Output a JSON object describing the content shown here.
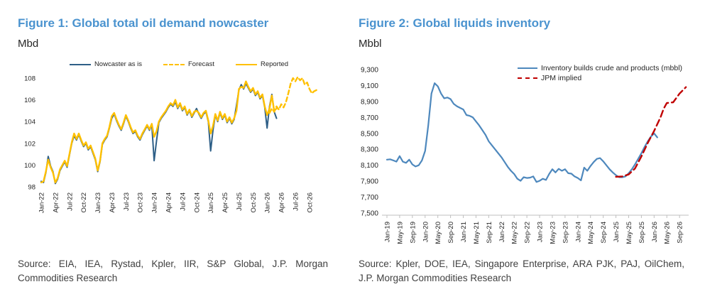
{
  "colors": {
    "figure_title": "#4a93cf",
    "text_dark": "#262626",
    "source_gray": "#404040",
    "axis_gray": "#bfbfbf",
    "nowcaster_blue": "#2e5f87",
    "reported_gold": "#ffc000",
    "inventory_blue": "#4e88bd",
    "jpm_red": "#c00000"
  },
  "figures": [
    {
      "title": "Figure 1: Global total oil demand nowcaster",
      "unit": "Mbd",
      "source": "Source: EIA, IEA, Rystad, Kpler, IIR, S&P Global, J.P. Morgan Commodities Research"
    },
    {
      "title": "Figure 2: Global liquids inventory",
      "unit": "Mbbl",
      "source": "Source: Kpler, DOE, IEA, Singapore Enterprise, ARA PJK, PAJ, OilChem, J.P. Morgan Commodities Research"
    }
  ],
  "chart_data": [
    {
      "type": "line",
      "title": "Figure 1: Global total oil demand nowcaster",
      "ylabel": "Mbd",
      "ylim": [
        98,
        108
      ],
      "grid": false,
      "legend_position": "top-center",
      "ytick_values": [
        98,
        100,
        102,
        104,
        106,
        108
      ],
      "ytick_labels": [
        "98",
        "100",
        "102",
        "104",
        "106",
        "108"
      ],
      "x_tick_step_months": 3,
      "x_tick_labels": [
        "Jan-22",
        "Apr-22",
        "Jul-22",
        "Oct-22",
        "Jan-23",
        "Apr-23",
        "Jul-23",
        "Oct-23",
        "Jan-24",
        "Apr-24",
        "Jul-24",
        "Oct-24",
        "Jan-25",
        "Apr-25",
        "Jul-25",
        "Oct-25",
        "Jan-26",
        "Apr-26",
        "Jul-26",
        "Oct-26"
      ],
      "legend": [
        {
          "label": "Nowcaster as is",
          "color": "#2e5f87",
          "dash": false
        },
        {
          "label": "Forecast",
          "color": "#ffc000",
          "dash": true
        },
        {
          "label": "Reported",
          "color": "#ffc000",
          "dash": false
        }
      ],
      "series": [
        {
          "name": "Nowcaster as is",
          "color": "#2e5f87",
          "dash": null,
          "width": 2,
          "start_m": 0,
          "step_m": 0.5,
          "values": [
            98.5,
            98.4,
            99.3,
            100.8,
            99.9,
            99.4,
            98.3,
            98.7,
            99.5,
            99.9,
            100.3,
            99.8,
            100.9,
            102.0,
            102.7,
            102.3,
            102.8,
            102.2,
            101.7,
            102.0,
            101.4,
            101.7,
            101.1,
            100.5,
            99.4,
            100.3,
            101.9,
            102.3,
            102.6,
            103.4,
            104.3,
            104.7,
            104.1,
            103.6,
            103.2,
            103.8,
            104.5,
            104.0,
            103.4,
            102.9,
            103.1,
            102.6,
            102.3,
            102.8,
            103.2,
            103.6,
            103.2,
            103.7,
            100.4,
            102.2,
            103.9,
            104.3,
            104.6,
            104.9,
            105.3,
            105.6,
            105.4,
            105.8,
            105.2,
            105.6,
            105.0,
            105.3,
            104.6,
            105.0,
            104.4,
            104.8,
            105.2,
            104.7,
            104.3,
            104.7,
            104.9,
            104.0,
            101.3,
            103.2,
            104.6,
            104.0,
            104.8,
            104.2,
            104.6,
            103.9,
            104.3,
            103.8,
            104.2,
            105.5,
            106.9,
            107.4,
            107.0,
            107.5,
            107.1,
            106.7,
            107.0,
            106.4,
            106.7,
            106.1,
            106.4,
            105.3,
            103.4,
            105.4,
            106.5,
            104.9,
            104.3
          ]
        },
        {
          "name": "Reported",
          "color": "#ffc000",
          "dash": null,
          "width": 2.4,
          "start_m": 0,
          "step_m": 0.5,
          "values": [
            98.4,
            98.5,
            99.4,
            100.5,
            99.8,
            99.3,
            98.4,
            98.8,
            99.6,
            100.0,
            100.4,
            99.9,
            101.0,
            102.1,
            102.9,
            102.4,
            102.9,
            102.3,
            101.8,
            102.1,
            101.5,
            101.8,
            101.2,
            100.6,
            99.5,
            100.4,
            102.0,
            102.4,
            102.7,
            103.5,
            104.5,
            104.8,
            104.2,
            103.7,
            103.3,
            103.9,
            104.6,
            104.1,
            103.5,
            103.0,
            103.2,
            102.7,
            102.4,
            102.9,
            103.3,
            103.7,
            103.3,
            103.8,
            102.6,
            103.1,
            104.0,
            104.4,
            104.7,
            105.0,
            105.4,
            105.7,
            105.5,
            106.0,
            105.3,
            105.7,
            105.1,
            105.4,
            104.7,
            105.1,
            104.5,
            104.9,
            105.0,
            104.8,
            104.4,
            104.8,
            105.0,
            104.1,
            102.9,
            103.6,
            104.7,
            104.1,
            104.9,
            104.3,
            104.7,
            104.0,
            104.4,
            103.9,
            104.3,
            105.0,
            107.0,
            107.2,
            107.1,
            107.7,
            107.2,
            106.8,
            107.1,
            106.5,
            106.8,
            106.2,
            106.5,
            105.4,
            104.6,
            105.2,
            106.4,
            105.0,
            105.2
          ]
        },
        {
          "name": "Forecast",
          "color": "#ffc000",
          "dash": "6 4",
          "width": 2.4,
          "start_m": 48.5,
          "step_m": 0.5,
          "values": [
            104.8,
            105.2,
            104.9,
            105.4,
            105.1,
            105.6,
            105.3,
            105.8,
            106.6,
            107.5,
            108.0,
            107.7,
            108.1,
            107.8,
            108.0,
            107.4,
            107.6,
            107.0,
            106.6,
            106.8,
            106.9
          ]
        }
      ]
    },
    {
      "type": "line",
      "title": "Figure 2: Global liquids inventory",
      "ylabel": "Mbbl",
      "ylim": [
        7500,
        9300
      ],
      "grid": false,
      "legend_position": "top-right",
      "ytick_values": [
        7500,
        7700,
        7900,
        8100,
        8300,
        8500,
        8700,
        8900,
        9100,
        9300
      ],
      "ytick_labels": [
        "7,500",
        "7,700",
        "7,900",
        "8,100",
        "8,300",
        "8,500",
        "8,700",
        "8,900",
        "9,100",
        "9,300"
      ],
      "x_tick_step_months": 4,
      "x_tick_labels": [
        "Jan-19",
        "May-19",
        "Sep-19",
        "Jan-20",
        "May-20",
        "Sep-20",
        "Jan-21",
        "May-21",
        "Sep-21",
        "Jan-22",
        "May-22",
        "Sep-22",
        "Jan-23",
        "May-23",
        "Sep-23",
        "Jan-24",
        "May-24",
        "Sep-24",
        "Jan-25",
        "May-25",
        "Sep-25",
        "Jan-26",
        "May-26",
        "Sep-26"
      ],
      "legend": [
        {
          "label": "Inventory builds crude and products (mbbl)",
          "color": "#4e88bd",
          "dash": false
        },
        {
          "label": "JPM implied",
          "color": "#c00000",
          "dash": true
        }
      ],
      "series": [
        {
          "name": "Inventory builds crude and products (mbbl)",
          "color": "#4e88bd",
          "dash": null,
          "width": 2.2,
          "start_m": 0,
          "step_m": 1,
          "values": [
            8170,
            8175,
            8160,
            8145,
            8215,
            8145,
            8130,
            8170,
            8110,
            8085,
            8100,
            8160,
            8280,
            8600,
            9000,
            9130,
            9090,
            9000,
            8940,
            8950,
            8930,
            8870,
            8840,
            8820,
            8800,
            8730,
            8720,
            8700,
            8650,
            8600,
            8540,
            8480,
            8400,
            8350,
            8300,
            8250,
            8200,
            8140,
            8080,
            8030,
            7990,
            7930,
            7905,
            7950,
            7940,
            7945,
            7960,
            7890,
            7905,
            7930,
            7915,
            7990,
            8050,
            8010,
            8055,
            8030,
            8050,
            8000,
            7995,
            7960,
            7940,
            7910,
            8070,
            8030,
            8090,
            8140,
            8180,
            8190,
            8150,
            8100,
            8050,
            8010,
            7975,
            7950,
            7950,
            7960,
            8000,
            8050,
            8110,
            8180,
            8250,
            8330,
            8400,
            8460,
            8500,
            8450
          ]
        },
        {
          "name": "JPM implied",
          "color": "#c00000",
          "dash": "9 5",
          "width": 2.4,
          "points": [
            [
              72,
              7955
            ],
            [
              74,
              7960
            ],
            [
              76,
              7985
            ],
            [
              78,
              8060
            ],
            [
              80,
              8210
            ],
            [
              82,
              8380
            ],
            [
              84,
              8530
            ],
            [
              86,
              8700
            ],
            [
              87,
              8810
            ],
            [
              88,
              8880
            ],
            [
              90,
              8890
            ],
            [
              92,
              9000
            ],
            [
              94,
              9080
            ]
          ]
        }
      ]
    }
  ]
}
